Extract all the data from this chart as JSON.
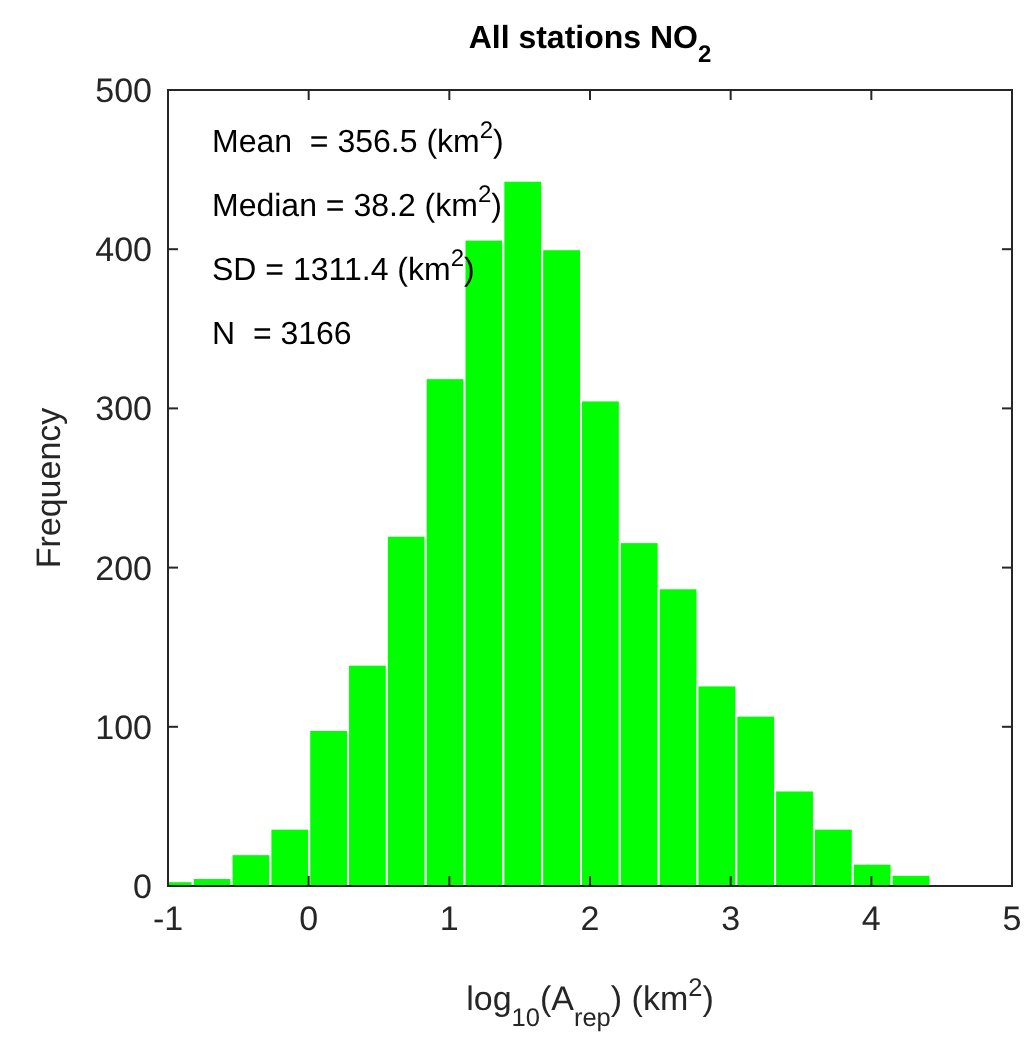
{
  "chart_data": {
    "type": "histogram",
    "title": "All stations NO$_{2}$",
    "xlabel": "log$_{10}$(A$_{rep}$) (km$^{2}$)",
    "ylabel": "Frequency",
    "bins": [
      -1,
      -0.824,
      -0.548,
      -0.272,
      0.004,
      0.28,
      0.556,
      0.832,
      1.108,
      1.384,
      1.66,
      1.936,
      2.212,
      2.488,
      2.764,
      3.04,
      3.316,
      3.592,
      3.868,
      4.144,
      4.42
    ],
    "values": [
      3,
      5,
      20,
      36,
      98,
      139,
      220,
      319,
      406,
      443,
      400,
      305,
      216,
      187,
      126,
      107,
      60,
      36,
      14,
      7
    ],
    "color": "#00ff00",
    "xlim": [
      -1,
      5
    ],
    "xticks": [
      -1,
      0,
      1,
      2,
      3,
      4,
      5
    ],
    "ylim": [
      0,
      500
    ],
    "yticks": [
      0,
      100,
      200,
      300,
      400,
      500
    ],
    "annotations": [
      "Mean  = 356.5 (km$^{2}$)",
      "Median = 38.2 (km$^{2}$)",
      "SD = 1311.4 (km$^{2}$)",
      "N  = 3166"
    ]
  }
}
